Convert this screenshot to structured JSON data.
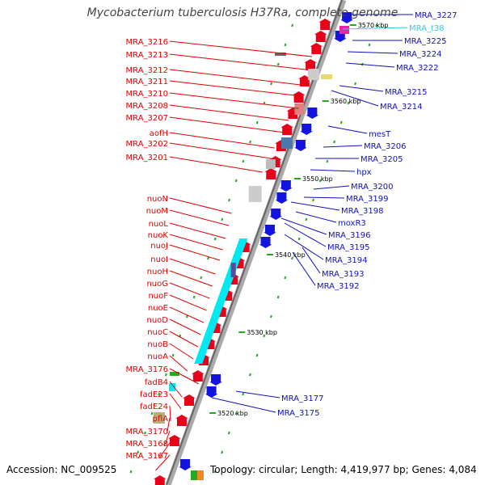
{
  "title": "Mycobacterium tuberculosis H37Ra, complete genome",
  "accession": "Accession: NC_009525",
  "summary": "Topology: circular; Length: 4,419,977 bp; Genes: 4,084",
  "colors": {
    "forward": "#e8001a",
    "reverse": "#1414e0",
    "trna": "#33ccee",
    "left_label": "#e00000",
    "right_label": "#1010c0",
    "backbone": "#888888",
    "tick": "#22aa22",
    "cds_extra": "#00e8f0"
  },
  "kbp_labels": [
    {
      "text": "3570 kbp"
    },
    {
      "text": "3560 kbp"
    },
    {
      "text": "3550 kbp"
    },
    {
      "text": "3540 kbp"
    },
    {
      "text": "3530 kbp"
    },
    {
      "text": "3520 kbp"
    }
  ],
  "left_genes": [
    "MRA_3216",
    "MRA_3213",
    "MRA_3212",
    "MRA_3211",
    "MRA_3210",
    "MRA_3208",
    "MRA_3207",
    "aofH",
    "MRA_3202",
    "MRA_3201",
    "nuoN",
    "nuoM",
    "nuoL",
    "nuoK",
    "nuoJ",
    "nuoI",
    "nuoH",
    "nuoG",
    "nuoF",
    "nuoE",
    "nuoD",
    "nuoC",
    "nuoB",
    "nuoA",
    "MRA_3176",
    "fadB4",
    "fadE23",
    "fadE24",
    "pflA",
    "MRA_3170",
    "MRA_3168",
    "MRA_3167"
  ],
  "right_genes": [
    "MRA_3227",
    "MRA_t38",
    "MRA_3225",
    "MRA_3224",
    "MRA_3222",
    "MRA_3215",
    "MRA_3214",
    "mesT",
    "MRA_3206",
    "MRA_3205",
    "hpx",
    "MRA_3200",
    "MRA_3199",
    "MRA_3198",
    "moxR3",
    "MRA_3196",
    "MRA_3195",
    "MRA_3194",
    "MRA_3193",
    "MRA_3192",
    "MRA_3177",
    "MRA_3175"
  ]
}
